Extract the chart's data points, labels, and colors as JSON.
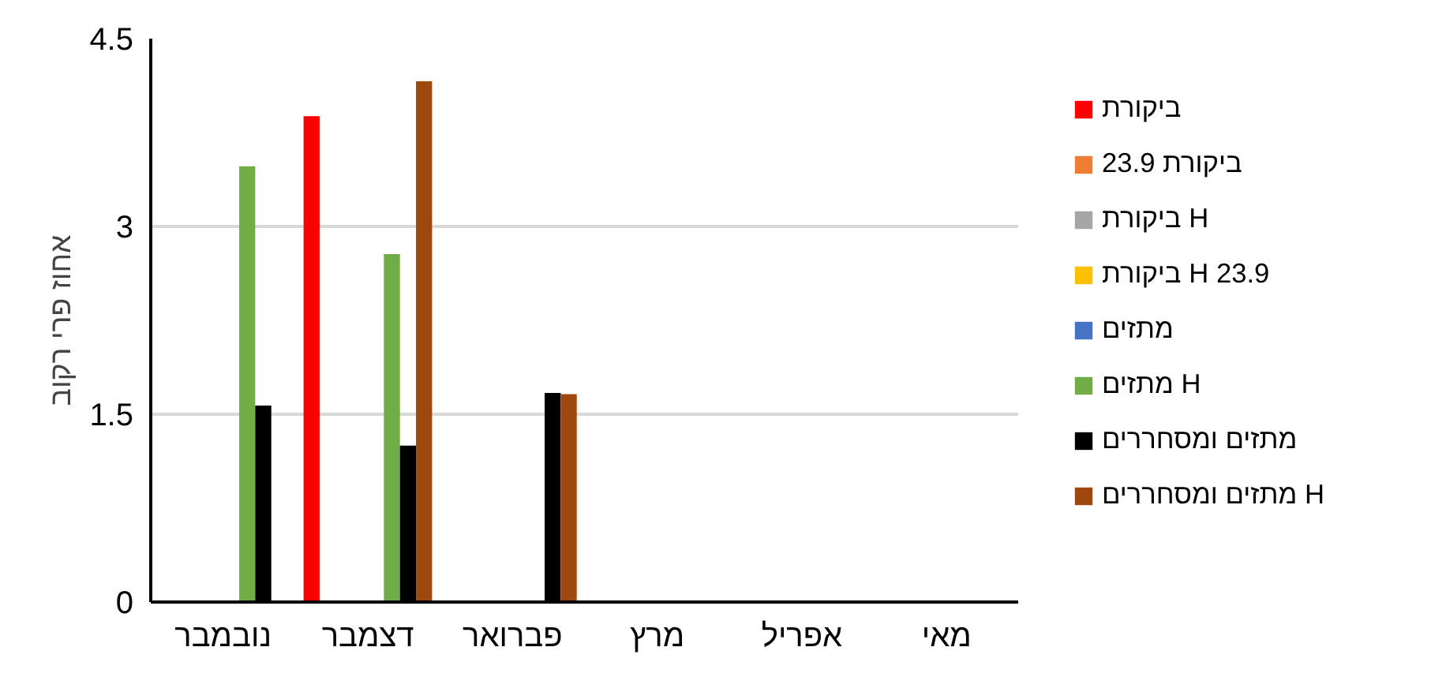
{
  "chart_data": {
    "type": "bar",
    "ylabel": "אחוז פרי רקוב",
    "categories": [
      "נובמבר",
      "דצמבר",
      "פברואר",
      "מרץ",
      "אפריל",
      "מאי"
    ],
    "ylim": [
      0,
      4.5
    ],
    "yticks": [
      0,
      1.5,
      3,
      4.5
    ],
    "grid": "y",
    "legend": "right",
    "series": [
      {
        "name": "ביקורת",
        "color": "#ff0000",
        "values": [
          null,
          3.88,
          null,
          null,
          null,
          null
        ]
      },
      {
        "name": "ביקורת 23.9",
        "color": "#ed7d31",
        "values": [
          null,
          null,
          null,
          null,
          null,
          null
        ]
      },
      {
        "name": "ביקורת H",
        "color": "#a5a5a5",
        "values": [
          null,
          null,
          null,
          null,
          null,
          null
        ]
      },
      {
        "name": "ביקורת H 23.9",
        "color": "#ffc000",
        "values": [
          null,
          null,
          null,
          null,
          null,
          null
        ]
      },
      {
        "name": "מתזים",
        "color": "#4472c4",
        "values": [
          null,
          null,
          null,
          null,
          null,
          null
        ]
      },
      {
        "name": "מתזים H",
        "color": "#70ad47",
        "values": [
          3.48,
          2.78,
          null,
          null,
          null,
          null
        ]
      },
      {
        "name": "מתזים ומסחררים",
        "color": "#000000",
        "values": [
          1.57,
          1.25,
          1.67,
          null,
          null,
          null
        ]
      },
      {
        "name": "מתזים ומסחררים H",
        "color": "#9e480e",
        "values": [
          null,
          4.16,
          1.66,
          null,
          null,
          null
        ]
      }
    ]
  }
}
